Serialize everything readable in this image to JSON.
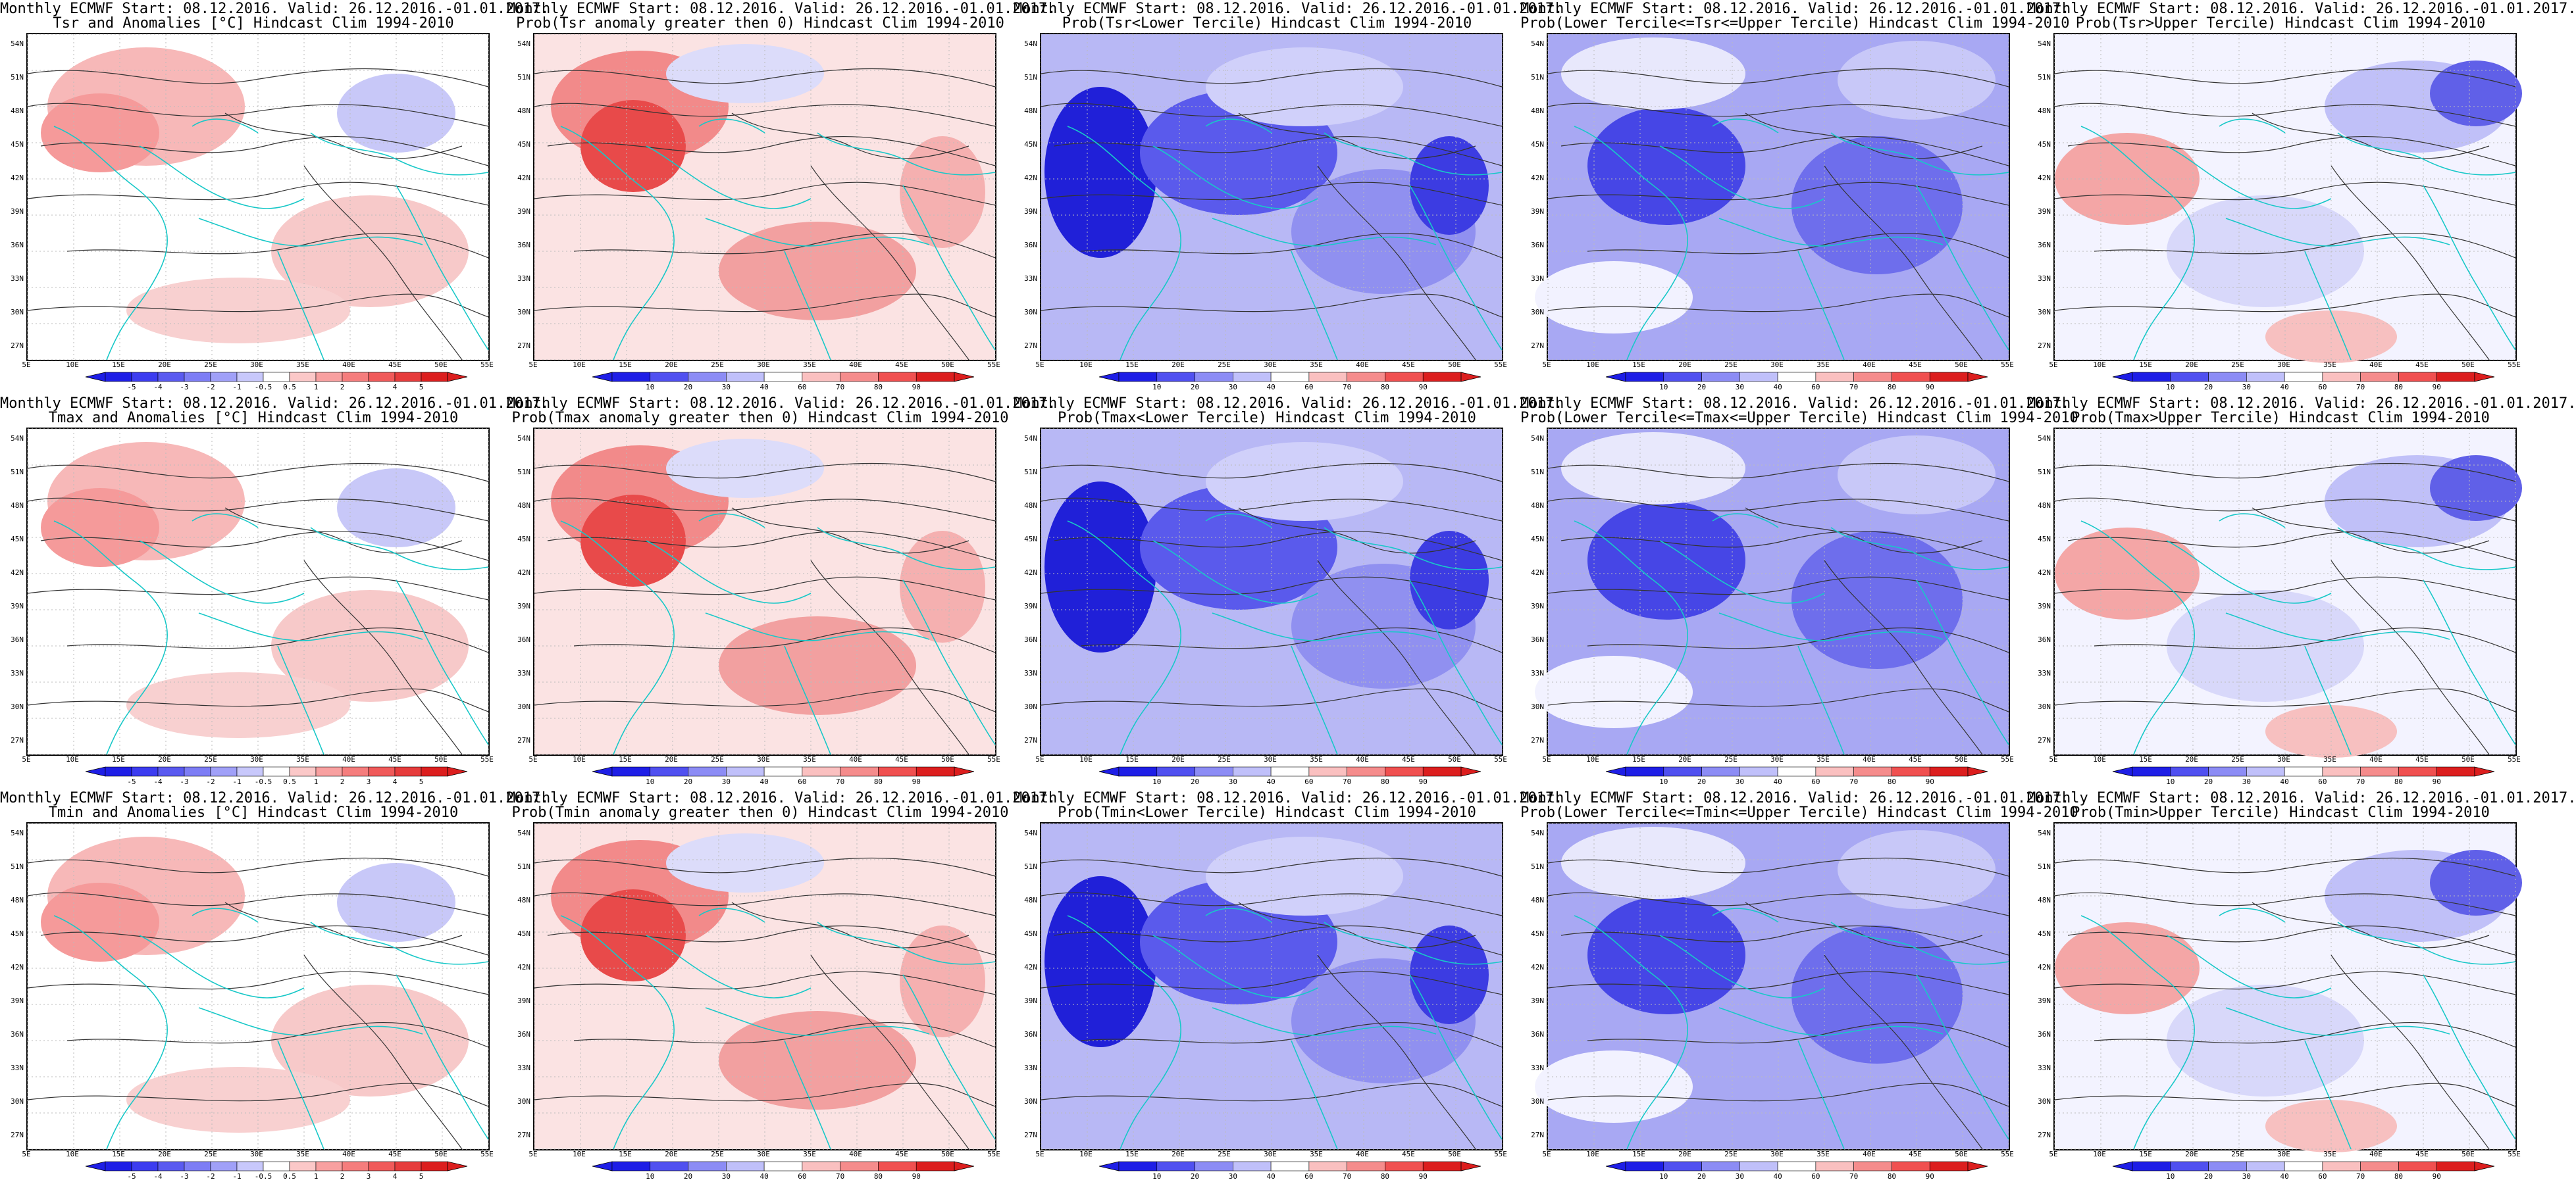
{
  "lat_ticks": [
    "54N",
    "51N",
    "48N",
    "45N",
    "42N",
    "39N",
    "36N",
    "33N",
    "30N",
    "27N"
  ],
  "lon_ticks": [
    "5E",
    "10E",
    "15E",
    "20E",
    "25E",
    "30E",
    "35E",
    "40E",
    "45E",
    "50E",
    "55E"
  ],
  "colorbars": {
    "anom": {
      "labels": [
        "-5",
        "-4",
        "-3",
        "-2",
        "-1",
        "-0.5",
        "0.5",
        "1",
        "2",
        "3",
        "4",
        "5"
      ],
      "colors": [
        "#1e1ee6",
        "#3c3cf0",
        "#5a5af0",
        "#7d7df5",
        "#a0a0f8",
        "#c8c8fb",
        "#ffffff",
        "#fbc8c8",
        "#f8a0a0",
        "#f57d7d",
        "#f05a5a",
        "#e63c3c",
        "#dc1e1e"
      ]
    },
    "prob": {
      "labels": [
        "10",
        "20",
        "30",
        "40",
        "60",
        "70",
        "80",
        "90"
      ],
      "colors": [
        "#1e1ee6",
        "#5050f0",
        "#8c8cf5",
        "#c0c0fa",
        "#ffffff",
        "#fac0c0",
        "#f58c8c",
        "#f05050",
        "#dc1e1e"
      ]
    }
  },
  "panels": [
    {
      "line1": "Monthly ECMWF Start: 08.12.2016. Valid: 26.12.2016.-01.01.2017.",
      "line2": "Tsr and Anomalies [°C] Hindcast Clim 1994-2010",
      "bar": "anom",
      "palette": "anom-warm"
    },
    {
      "line1": "Monthly ECMWF Start: 08.12.2016. Valid: 26.12.2016.-01.01.2017.",
      "line2": "Prob(Tsr anomaly greater then 0) Hindcast Clim 1994-2010",
      "bar": "prob",
      "palette": "prob-red"
    },
    {
      "line1": "Monthly ECMWF Start: 08.12.2016. Valid: 26.12.2016.-01.01.2017.",
      "line2": "Prob(Tsr<Lower Tercile) Hindcast Clim 1994-2010",
      "bar": "prob",
      "palette": "prob-blue"
    },
    {
      "line1": "Monthly ECMWF Start: 08.12.2016. Valid: 26.12.2016.-01.01.2017.",
      "line2": "Prob(Lower Tercile<=Tsr<=Upper Tercile) Hindcast Clim 1994-2010",
      "bar": "prob",
      "palette": "prob-mid"
    },
    {
      "line1": "Monthly ECMWF Start: 08.12.2016. Valid: 26.12.2016.-01.01.2017.",
      "line2": "Prob(Tsr>Upper Tercile) Hindcast Clim 1994-2010",
      "bar": "prob",
      "palette": "prob-upper"
    },
    {
      "line1": "Monthly ECMWF Start: 08.12.2016. Valid: 26.12.2016.-01.01.2017.",
      "line2": "Tmax and Anomalies [°C] Hindcast Clim 1994-2010",
      "bar": "anom",
      "palette": "anom-warm"
    },
    {
      "line1": "Monthly ECMWF Start: 08.12.2016. Valid: 26.12.2016.-01.01.2017.",
      "line2": "Prob(Tmax anomaly greater then 0) Hindcast Clim 1994-2010",
      "bar": "prob",
      "palette": "prob-red"
    },
    {
      "line1": "Monthly ECMWF Start: 08.12.2016. Valid: 26.12.2016.-01.01.2017.",
      "line2": "Prob(Tmax<Lower Tercile) Hindcast Clim 1994-2010",
      "bar": "prob",
      "palette": "prob-blue"
    },
    {
      "line1": "Monthly ECMWF Start: 08.12.2016. Valid: 26.12.2016.-01.01.2017.",
      "line2": "Prob(Lower Tercile<=Tmax<=Upper Tercile) Hindcast Clim 1994-2010",
      "bar": "prob",
      "palette": "prob-mid"
    },
    {
      "line1": "Monthly ECMWF Start: 08.12.2016. Valid: 26.12.2016.-01.01.2017.",
      "line2": "Prob(Tmax>Upper Tercile) Hindcast Clim 1994-2010",
      "bar": "prob",
      "palette": "prob-upper"
    },
    {
      "line1": "Monthly ECMWF Start: 08.12.2016. Valid: 26.12.2016.-01.01.2017.",
      "line2": "Tmin and Anomalies [°C] Hindcast Clim 1994-2010",
      "bar": "anom",
      "palette": "anom-warm"
    },
    {
      "line1": "Monthly ECMWF Start: 08.12.2016. Valid: 26.12.2016.-01.01.2017.",
      "line2": "Prob(Tmin anomaly greater then 0) Hindcast Clim 1994-2010",
      "bar": "prob",
      "palette": "prob-red"
    },
    {
      "line1": "Monthly ECMWF Start: 08.12.2016. Valid: 26.12.2016.-01.01.2017.",
      "line2": "Prob(Tmin<Lower Tercile) Hindcast Clim 1994-2010",
      "bar": "prob",
      "palette": "prob-blue"
    },
    {
      "line1": "Monthly ECMWF Start: 08.12.2016. Valid: 26.12.2016.-01.01.2017.",
      "line2": "Prob(Lower Tercile<=Tmin<=Upper Tercile) Hindcast Clim 1994-2010",
      "bar": "prob",
      "palette": "prob-mid"
    },
    {
      "line1": "Monthly ECMWF Start: 08.12.2016. Valid: 26.12.2016.-01.01.2017.",
      "line2": "Prob(Tmin>Upper Tercile) Hindcast Clim 1994-2010",
      "bar": "prob",
      "palette": "prob-upper"
    }
  ]
}
